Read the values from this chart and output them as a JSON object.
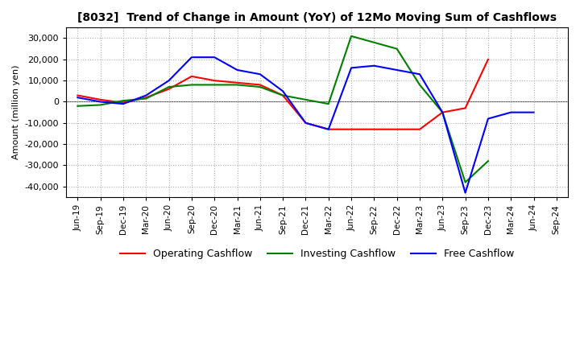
{
  "title": "[8032]  Trend of Change in Amount (YoY) of 12Mo Moving Sum of Cashflows",
  "ylabel": "Amount (million yen)",
  "x_labels": [
    "Jun-19",
    "Sep-19",
    "Dec-19",
    "Mar-20",
    "Jun-20",
    "Sep-20",
    "Dec-20",
    "Mar-21",
    "Jun-21",
    "Sep-21",
    "Dec-21",
    "Mar-22",
    "Jun-22",
    "Sep-22",
    "Dec-22",
    "Mar-23",
    "Jun-23",
    "Sep-23",
    "Dec-23",
    "Mar-24",
    "Jun-24",
    "Sep-24"
  ],
  "operating": [
    3000,
    1000,
    -500,
    2000,
    6000,
    12000,
    10000,
    9000,
    8000,
    3000,
    -10000,
    -13000,
    -13000,
    -13000,
    -13000,
    -13000,
    -5000,
    -3000,
    20000,
    null,
    null,
    null
  ],
  "investing": [
    -2000,
    -1500,
    500,
    1500,
    7000,
    8000,
    8000,
    8000,
    7000,
    3000,
    1000,
    -1000,
    31000,
    28000,
    25000,
    8000,
    -5000,
    -38000,
    -28000,
    null,
    null,
    null
  ],
  "free": [
    2000,
    0,
    -1000,
    3000,
    10000,
    21000,
    21000,
    15000,
    13000,
    5000,
    -10000,
    -13000,
    16000,
    17000,
    15000,
    13000,
    -5000,
    -43000,
    -8000,
    -5000,
    -5000,
    null
  ],
  "ylim": [
    -45000,
    35000
  ],
  "yticks": [
    -40000,
    -30000,
    -20000,
    -10000,
    0,
    10000,
    20000,
    30000
  ],
  "colors": {
    "operating": "#ff0000",
    "investing": "#008000",
    "free": "#0000ff"
  },
  "legend_labels": [
    "Operating Cashflow",
    "Investing Cashflow",
    "Free Cashflow"
  ],
  "background": "#ffffff",
  "grid_color": "#b0b0b0"
}
